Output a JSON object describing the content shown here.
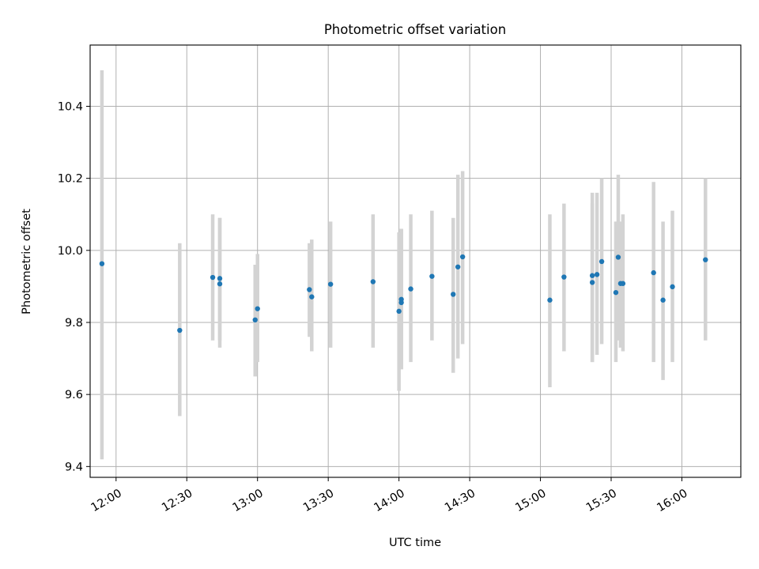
{
  "chart_data": {
    "type": "scatter",
    "title": "Photometric offset variation",
    "xlabel": "UTC time",
    "ylabel": "Photometric offset",
    "xlim": [
      "11:49",
      "16:25"
    ],
    "ylim": [
      9.37,
      10.57
    ],
    "x_ticks": [
      "12:00",
      "12:30",
      "13:00",
      "13:30",
      "14:00",
      "14:30",
      "15:00",
      "15:30",
      "16:00"
    ],
    "y_ticks": [
      9.4,
      9.6,
      9.8,
      10.0,
      10.2,
      10.4
    ],
    "grid": true,
    "colors": {
      "marker": "#1f77b4",
      "errorbar": "#d3d3d3"
    },
    "series": [
      {
        "points": [
          {
            "time": "11:54",
            "y": 9.963,
            "lo": 9.42,
            "hi": 10.5
          },
          {
            "time": "12:27",
            "y": 9.778,
            "lo": 9.54,
            "hi": 10.02
          },
          {
            "time": "12:41",
            "y": 9.925,
            "lo": 9.75,
            "hi": 10.1
          },
          {
            "time": "12:44",
            "y": 9.907,
            "lo": 9.73,
            "hi": 10.09
          },
          {
            "time": "12:44",
            "y": 9.922,
            "lo": 9.75,
            "hi": 10.09
          },
          {
            "time": "12:59",
            "y": 9.807,
            "lo": 9.65,
            "hi": 9.96
          },
          {
            "time": "13:00",
            "y": 9.838,
            "lo": 9.69,
            "hi": 9.99
          },
          {
            "time": "13:22",
            "y": 9.891,
            "lo": 9.76,
            "hi": 10.02
          },
          {
            "time": "13:23",
            "y": 9.871,
            "lo": 9.72,
            "hi": 10.03
          },
          {
            "time": "13:31",
            "y": 9.906,
            "lo": 9.73,
            "hi": 10.08
          },
          {
            "time": "13:49",
            "y": 9.913,
            "lo": 9.73,
            "hi": 10.1
          },
          {
            "time": "14:00",
            "y": 9.831,
            "lo": 9.61,
            "hi": 10.05
          },
          {
            "time": "14:01",
            "y": 9.855,
            "lo": 9.67,
            "hi": 10.06
          },
          {
            "time": "14:01",
            "y": 9.864,
            "lo": 9.67,
            "hi": 10.06
          },
          {
            "time": "14:05",
            "y": 9.893,
            "lo": 9.69,
            "hi": 10.1
          },
          {
            "time": "14:14",
            "y": 9.928,
            "lo": 9.75,
            "hi": 10.11
          },
          {
            "time": "14:23",
            "y": 9.878,
            "lo": 9.66,
            "hi": 10.09
          },
          {
            "time": "14:25",
            "y": 9.954,
            "lo": 9.7,
            "hi": 10.21
          },
          {
            "time": "14:27",
            "y": 9.982,
            "lo": 9.74,
            "hi": 10.22
          },
          {
            "time": "15:04",
            "y": 9.862,
            "lo": 9.62,
            "hi": 10.1
          },
          {
            "time": "15:10",
            "y": 9.926,
            "lo": 9.72,
            "hi": 10.13
          },
          {
            "time": "15:22",
            "y": 9.911,
            "lo": 9.69,
            "hi": 10.13
          },
          {
            "time": "15:22",
            "y": 9.93,
            "lo": 9.69,
            "hi": 10.16
          },
          {
            "time": "15:24",
            "y": 9.933,
            "lo": 9.71,
            "hi": 10.16
          },
          {
            "time": "15:26",
            "y": 9.969,
            "lo": 9.74,
            "hi": 10.2
          },
          {
            "time": "15:32",
            "y": 9.883,
            "lo": 9.69,
            "hi": 10.08
          },
          {
            "time": "15:33",
            "y": 9.981,
            "lo": 9.75,
            "hi": 10.21
          },
          {
            "time": "15:34",
            "y": 9.908,
            "lo": 9.73,
            "hi": 10.08
          },
          {
            "time": "15:35",
            "y": 9.908,
            "lo": 9.72,
            "hi": 10.1
          },
          {
            "time": "15:48",
            "y": 9.938,
            "lo": 9.69,
            "hi": 10.19
          },
          {
            "time": "15:52",
            "y": 9.862,
            "lo": 9.64,
            "hi": 10.08
          },
          {
            "time": "15:56",
            "y": 9.899,
            "lo": 9.69,
            "hi": 10.11
          },
          {
            "time": "16:10",
            "y": 9.974,
            "lo": 9.75,
            "hi": 10.2
          }
        ]
      }
    ]
  }
}
